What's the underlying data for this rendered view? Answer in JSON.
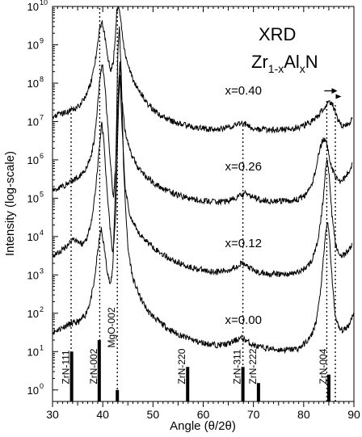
{
  "chart_data": {
    "type": "line",
    "title": "XRD",
    "formula": {
      "base": "Zr",
      "sub1": "1-x",
      "mid": "Al",
      "sub2": "x",
      "end": "N"
    },
    "xlabel": "Angle (θ/2θ)",
    "ylabel": "Intensity (log-scale)",
    "xlim": [
      30,
      90
    ],
    "ylim_log10": [
      -0.3,
      10
    ],
    "x_ticks": [
      "30",
      "40",
      "50",
      "60",
      "70",
      "80",
      "90"
    ],
    "y_ticks": [
      {
        "label": "10",
        "exp": "0"
      },
      {
        "label": "10",
        "exp": "1"
      },
      {
        "label": "10",
        "exp": "2"
      },
      {
        "label": "10",
        "exp": "3"
      },
      {
        "label": "10",
        "exp": "4"
      },
      {
        "label": "10",
        "exp": "5"
      },
      {
        "label": "10",
        "exp": "6"
      },
      {
        "label": "10",
        "exp": "7"
      },
      {
        "label": "10",
        "exp": "8"
      },
      {
        "label": "10",
        "exp": "9"
      },
      {
        "label": "10",
        "exp": "10"
      }
    ],
    "series": [
      {
        "name": "x=0.00",
        "x": [
          30,
          31.5,
          33,
          34.5,
          35.5,
          36.5,
          37.5,
          38.3,
          38.8,
          39.3,
          39.7,
          40.2,
          40.8,
          41.5,
          42,
          42.5,
          43,
          43.3,
          43.7,
          44.2,
          45,
          46,
          47.5,
          49,
          51,
          53,
          55,
          57,
          59,
          61,
          63,
          65,
          66.5,
          67.5,
          68.5,
          69.5,
          71,
          73,
          75,
          77,
          79,
          80.5,
          81.5,
          82.5,
          83.2,
          83.8,
          84.3,
          84.7,
          85.1,
          85.6,
          86.2,
          87,
          88,
          89,
          90
        ],
        "log_y": [
          1.5,
          1.6,
          1.7,
          1.75,
          1.8,
          1.95,
          2.3,
          2.8,
          3.4,
          3.9,
          4.2,
          3.8,
          3.2,
          2.7,
          3.2,
          5.2,
          8.8,
          9.5,
          8.2,
          5.6,
          3.7,
          2.9,
          2.4,
          2.05,
          1.8,
          1.6,
          1.45,
          1.35,
          1.25,
          1.2,
          1.17,
          1.2,
          1.3,
          1.35,
          1.3,
          1.2,
          1.12,
          1.08,
          1.05,
          1.05,
          1.08,
          1.25,
          1.4,
          1.8,
          2.4,
          3.2,
          4.0,
          4.4,
          4.0,
          3.0,
          2.0,
          1.6,
          1.55,
          1.7,
          2.05
        ]
      },
      {
        "name": "x=0.12",
        "x": [
          30,
          31.5,
          32.5,
          33.5,
          34.2,
          35,
          36,
          37,
          38,
          38.7,
          39.3,
          39.8,
          40.2,
          40.8,
          41.4,
          42,
          42.6,
          43,
          43.4,
          43.8,
          44.5,
          45.5,
          47,
          49,
          51,
          53,
          55,
          57,
          59,
          61,
          63,
          65,
          66.5,
          67.5,
          68.5,
          69.5,
          71,
          73,
          75,
          77,
          79,
          80.5,
          81.5,
          82.5,
          83.3,
          83.9,
          84.3,
          84.7,
          85.1,
          85.6,
          86.3,
          87,
          88,
          89,
          89.7
        ],
        "log_y": [
          3.5,
          3.6,
          3.72,
          3.85,
          3.95,
          3.88,
          3.8,
          4.0,
          4.6,
          5.4,
          6.3,
          7.0,
          6.5,
          5.3,
          4.3,
          3.5,
          4.6,
          6.8,
          8.3,
          6.9,
          5.2,
          4.5,
          4.1,
          3.85,
          3.62,
          3.45,
          3.32,
          3.22,
          3.15,
          3.1,
          3.08,
          3.12,
          3.22,
          3.3,
          3.25,
          3.15,
          3.06,
          3.03,
          3.02,
          3.02,
          3.07,
          3.2,
          3.35,
          3.7,
          4.3,
          5.0,
          5.7,
          6.0,
          5.6,
          4.6,
          3.8,
          3.55,
          3.5,
          3.65,
          3.8
        ]
      },
      {
        "name": "x=0.26",
        "x": [
          30,
          31.5,
          33,
          34.5,
          35.5,
          36.5,
          37.5,
          38.3,
          38.9,
          39.4,
          39.9,
          40.4,
          41,
          41.6,
          42.1,
          42.6,
          43,
          43.4,
          43.8,
          44.5,
          45.5,
          47,
          49,
          51,
          53,
          55,
          57,
          59,
          61,
          63,
          65,
          66.5,
          67.5,
          68.5,
          69.5,
          71,
          73,
          75,
          77,
          79,
          80.5,
          81.5,
          82.3,
          83,
          83.6,
          84.1,
          84.5,
          84.9,
          85.4,
          86,
          86.8,
          87.5,
          88.3,
          89,
          89.7
        ],
        "log_y": [
          5.2,
          5.28,
          5.38,
          5.5,
          5.6,
          5.75,
          6.0,
          6.5,
          7.3,
          8.1,
          8.5,
          8.0,
          6.9,
          5.8,
          5.0,
          5.9,
          7.4,
          8.6,
          7.6,
          6.7,
          6.2,
          5.8,
          5.52,
          5.32,
          5.18,
          5.08,
          5.0,
          4.95,
          4.92,
          4.9,
          4.93,
          5.0,
          5.08,
          5.12,
          5.05,
          4.98,
          4.93,
          4.92,
          4.93,
          4.97,
          5.1,
          5.3,
          5.7,
          6.15,
          6.45,
          6.55,
          6.45,
          6.2,
          5.9,
          5.65,
          5.45,
          5.45,
          5.55,
          5.7,
          5.9
        ]
      },
      {
        "name": "x=0.40",
        "x": [
          30,
          31.5,
          33,
          34.5,
          35.5,
          36.5,
          37.5,
          38.3,
          38.9,
          39.4,
          39.9,
          40.4,
          41,
          41.6,
          42.1,
          42.5,
          42.8,
          43.1,
          43.5,
          44,
          44.8,
          46,
          47.5,
          49,
          51,
          53,
          55,
          57,
          59,
          61,
          63,
          65,
          66.5,
          67.5,
          68.5,
          69.5,
          71,
          73,
          75,
          77,
          79,
          80.5,
          81.5,
          82.5,
          83.3,
          84,
          84.7,
          85.3,
          85.8,
          86.3,
          86.8,
          87.5,
          88.3,
          89,
          89.7
        ],
        "log_y": [
          7.15,
          7.2,
          7.25,
          7.32,
          7.45,
          7.65,
          7.95,
          8.4,
          8.95,
          9.4,
          9.6,
          9.25,
          8.7,
          8.35,
          8.55,
          9.2,
          9.9,
          10.05,
          9.8,
          9.1,
          8.55,
          8.1,
          7.75,
          7.45,
          7.2,
          7.05,
          6.95,
          6.88,
          6.83,
          6.8,
          6.8,
          6.85,
          6.92,
          6.96,
          6.93,
          6.85,
          6.8,
          6.78,
          6.78,
          6.8,
          6.85,
          6.92,
          7.0,
          7.1,
          7.22,
          7.35,
          7.45,
          7.48,
          7.42,
          7.28,
          7.05,
          6.9,
          6.88,
          6.95,
          7.05
        ]
      }
    ],
    "series_labels": [
      {
        "text": "x=0.40",
        "x": 68,
        "log_y": 7.7
      },
      {
        "text": "x=0.26",
        "x": 68,
        "log_y": 5.72
      },
      {
        "text": "x=0.12",
        "x": 68,
        "log_y": 3.72
      },
      {
        "text": "x=0.00",
        "x": 68,
        "log_y": 1.72
      }
    ],
    "dotted_lines": [
      {
        "x": 33.7,
        "top_log": 7.4
      },
      {
        "x": 39.4,
        "top_log": 10.0
      },
      {
        "x": 42.9,
        "top_log": 10.0
      },
      {
        "x": 67.9,
        "top_log": 6.9
      },
      {
        "x": 84.6,
        "top_log": 7.6
      },
      {
        "x": 86.3,
        "top_log": 7.5
      }
    ],
    "reference_peaks": [
      {
        "label": "ZrN-111",
        "x": 33.8,
        "height": 1.0
      },
      {
        "label": "ZrN-002",
        "x": 39.3,
        "height": 1.3
      },
      {
        "label": "MgO-002",
        "x": 42.9,
        "height": 0.0
      },
      {
        "label": "ZrN-220",
        "x": 56.9,
        "height": 0.6
      },
      {
        "label": "ZrN-311",
        "x": 67.9,
        "height": 0.6
      },
      {
        "label": "ZrN-222",
        "x": 71.0,
        "height": 0.18
      },
      {
        "label": "ZrN-004",
        "x": 85.0,
        "height": 0.4
      }
    ],
    "peak_shift_arrow": {
      "from_x": 84.1,
      "to_x": 86.7,
      "log_y": 7.8
    },
    "grid": false,
    "legend": "none"
  }
}
